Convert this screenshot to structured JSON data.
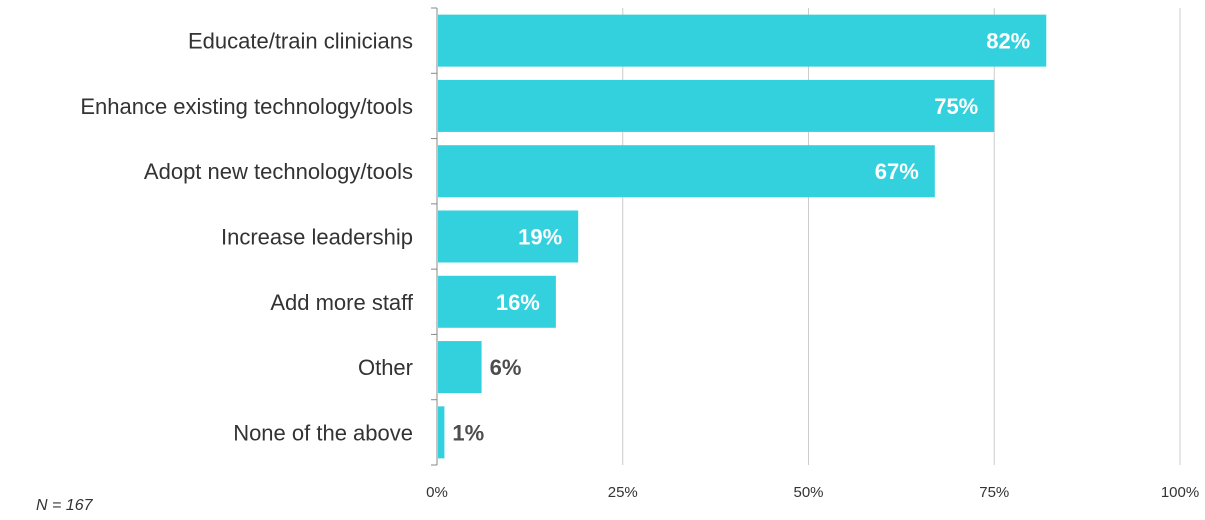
{
  "chart_data": {
    "type": "bar",
    "orientation": "horizontal",
    "categories": [
      "Educate/train clinicians",
      "Enhance existing technology/tools",
      "Adopt new technology/tools",
      "Increase leadership",
      "Add more staff",
      "Other",
      "None of the above"
    ],
    "values": [
      82,
      75,
      67,
      19,
      16,
      6,
      1
    ],
    "value_labels": [
      "82%",
      "75%",
      "67%",
      "19%",
      "16%",
      "6%",
      "1%"
    ],
    "xlim": [
      0,
      100
    ],
    "x_ticks": [
      0,
      25,
      50,
      75,
      100
    ],
    "x_tick_labels": [
      "0%",
      "25%",
      "50%",
      "75%",
      "100%"
    ],
    "grid": "vertical",
    "legend": "none"
  },
  "colors": {
    "bar": "#33d0de",
    "label_inside": "#ffffff",
    "label_outside": "#4d4d4d",
    "grid": "#cccccc",
    "axis": "#888888"
  },
  "footnote": "N = 167"
}
